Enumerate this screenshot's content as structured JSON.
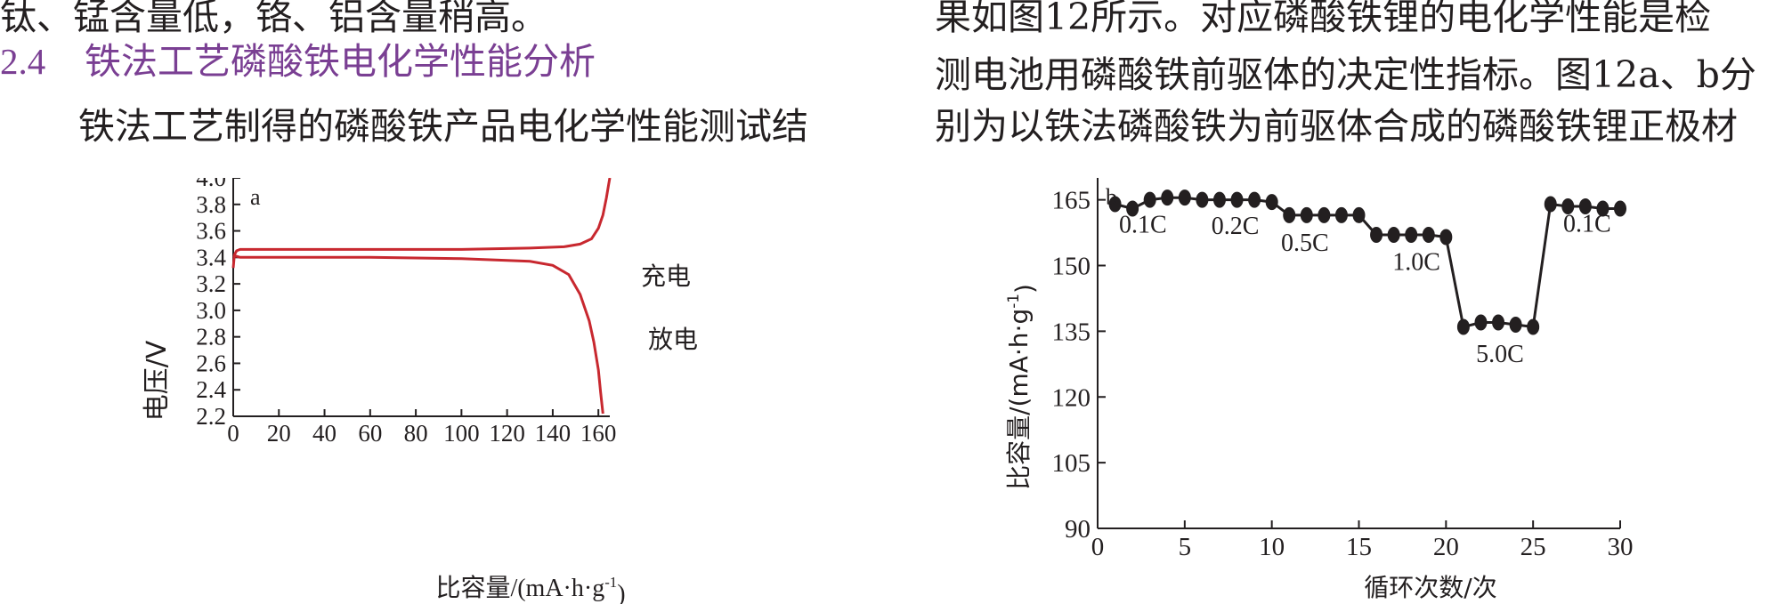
{
  "left_column": {
    "line1": "钛、锰含量低，铬、铝含量稍高。",
    "section_number": "2.4",
    "section_title": "铁法工艺磷酸铁电化学性能分析",
    "line3": "铁法工艺制得的磷酸铁产品电化学性能测试结"
  },
  "right_column": {
    "line1": "果如图12所示。对应磷酸铁锂的电化学性能是检",
    "line2": "测电池用磷酸铁前驱体的决定性指标。图12a、b分",
    "line3": "别为以铁法磷酸铁为前驱体合成的磷酸铁锂正极材"
  },
  "colors": {
    "curve_red": "#c8282f",
    "ink": "#231f20",
    "heading": "#7a3f93"
  },
  "chart_data": [
    {
      "type": "line",
      "panel_label": "a",
      "xlabel": "比容量/(mA·h·g-1)",
      "ylabel": "电压/V",
      "xlim": [
        0,
        165
      ],
      "ylim": [
        2.2,
        4.0
      ],
      "x_ticks": [
        "0",
        "20",
        "40",
        "60",
        "80",
        "100",
        "120",
        "140",
        "160"
      ],
      "y_ticks": [
        "4.0",
        "3.8",
        "3.6",
        "3.4",
        "3.2",
        "3.0",
        "2.8",
        "2.6",
        "2.4",
        "2.2"
      ],
      "series": [
        {
          "name": "充电",
          "x": [
            0,
            0.5,
            1.5,
            3,
            20,
            60,
            100,
            130,
            145,
            152,
            157,
            160,
            162,
            163.5,
            164.5,
            165
          ],
          "y": [
            3.32,
            3.42,
            3.45,
            3.46,
            3.46,
            3.46,
            3.46,
            3.47,
            3.48,
            3.5,
            3.54,
            3.62,
            3.72,
            3.85,
            3.95,
            4.0
          ]
        },
        {
          "name": "放电",
          "x": [
            0,
            1,
            3,
            20,
            60,
            100,
            130,
            140,
            147,
            152,
            156,
            158,
            160,
            161,
            162
          ],
          "y": [
            3.4,
            3.41,
            3.4,
            3.4,
            3.4,
            3.39,
            3.37,
            3.34,
            3.27,
            3.12,
            2.92,
            2.76,
            2.55,
            2.38,
            2.22
          ]
        }
      ],
      "annotations": [
        "充电",
        "放电"
      ]
    },
    {
      "type": "line",
      "panel_label": "b",
      "xlabel": "循环次数/次",
      "ylabel": "比容量/(mA·h·g-1)",
      "xlim": [
        0,
        30
      ],
      "ylim": [
        90,
        170
      ],
      "x_ticks": [
        "0",
        "5",
        "10",
        "15",
        "20",
        "25",
        "30"
      ],
      "y_ticks": [
        "165",
        "150",
        "135",
        "120",
        "105",
        "90"
      ],
      "series": [
        {
          "name": "",
          "x": [
            1,
            2,
            3,
            4,
            5,
            6,
            7,
            8,
            9,
            10,
            11,
            12,
            13,
            14,
            15,
            16,
            17,
            18,
            19,
            20,
            21,
            22,
            23,
            24,
            25,
            26,
            27,
            28,
            29,
            30
          ],
          "y": [
            164,
            163,
            165,
            165.5,
            165.5,
            165,
            165,
            165,
            165,
            164.5,
            161.5,
            161.5,
            161.5,
            161.5,
            161.5,
            157,
            157,
            157,
            157,
            156.5,
            136,
            137,
            137,
            136.5,
            136,
            164,
            163.5,
            163.5,
            163,
            163
          ]
        }
      ],
      "annotations": [
        "0.1C",
        "0.2C",
        "0.5C",
        "1.0C",
        "5.0C",
        "0.1C"
      ]
    }
  ]
}
